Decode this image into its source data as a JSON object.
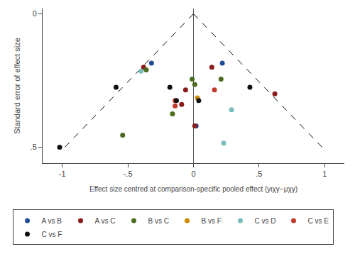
{
  "chart_data": {
    "type": "scatter",
    "marker": "circle",
    "grid": false,
    "xlabel": "Effect size centred at comparison-specific pooled effect (yιχγ−μχγ)",
    "ylabel": "Standard error of effect size",
    "xlim": [
      -1.15,
      1.15
    ],
    "ylim": [
      0.56,
      -0.02
    ],
    "xticks": [
      -1,
      {
        "value": -0.5,
        "label": "-.5"
      },
      0,
      {
        "value": 0.5,
        "label": ".5"
      },
      1
    ],
    "yticks": [
      0,
      {
        "value": 0.5,
        "label": ".5"
      }
    ],
    "series": [
      {
        "type": "line",
        "line_style": "dashed",
        "color": "#000000",
        "x": [
          -0.98,
          0
        ],
        "y": [
          0.5,
          0
        ]
      },
      {
        "type": "line",
        "line_style": "dashed",
        "color": "#000000",
        "x": [
          0,
          0.98
        ],
        "y": [
          0,
          0.5
        ]
      },
      {
        "type": "vline",
        "line_style": "solid",
        "color": "#555555",
        "x": 0
      },
      {
        "name": "A vs B",
        "color": "#1F4E96",
        "x": [
          -0.32,
          0.22,
          0.02
        ],
        "y": [
          0.185,
          0.185,
          0.42
        ]
      },
      {
        "name": "A vs C",
        "color": "#8B1C1C",
        "x": [
          -0.38,
          -0.06,
          -0.09,
          0.14,
          0.01,
          0.62
        ],
        "y": [
          0.2,
          0.285,
          0.34,
          0.2,
          0.42,
          0.3
        ]
      },
      {
        "name": "B vs C",
        "color": "#4B6B1E",
        "x": [
          -0.01,
          -0.16,
          -0.54,
          0.21,
          0.01,
          -0.36
        ],
        "y": [
          0.245,
          0.375,
          0.455,
          0.245,
          0.265,
          0.21
        ]
      },
      {
        "name": "B vs F",
        "color": "#CC8800",
        "x": [
          0.03
        ],
        "y": [
          0.315
        ]
      },
      {
        "name": "C vs D",
        "color": "#7BBCBC",
        "x": [
          -0.4,
          0.29,
          0.23
        ],
        "y": [
          0.215,
          0.36,
          0.485
        ]
      },
      {
        "name": "C vs E",
        "color": "#C0392B",
        "x": [
          -0.14,
          -0.14,
          0.16
        ],
        "y": [
          0.325,
          0.345,
          0.285
        ]
      },
      {
        "name": "C vs F",
        "color": "#111111",
        "x": [
          -0.59,
          -0.18,
          -0.13,
          0.04,
          0.43,
          -1.02
        ],
        "y": [
          0.275,
          0.275,
          0.325,
          0.325,
          0.275,
          0.5
        ]
      }
    ]
  }
}
